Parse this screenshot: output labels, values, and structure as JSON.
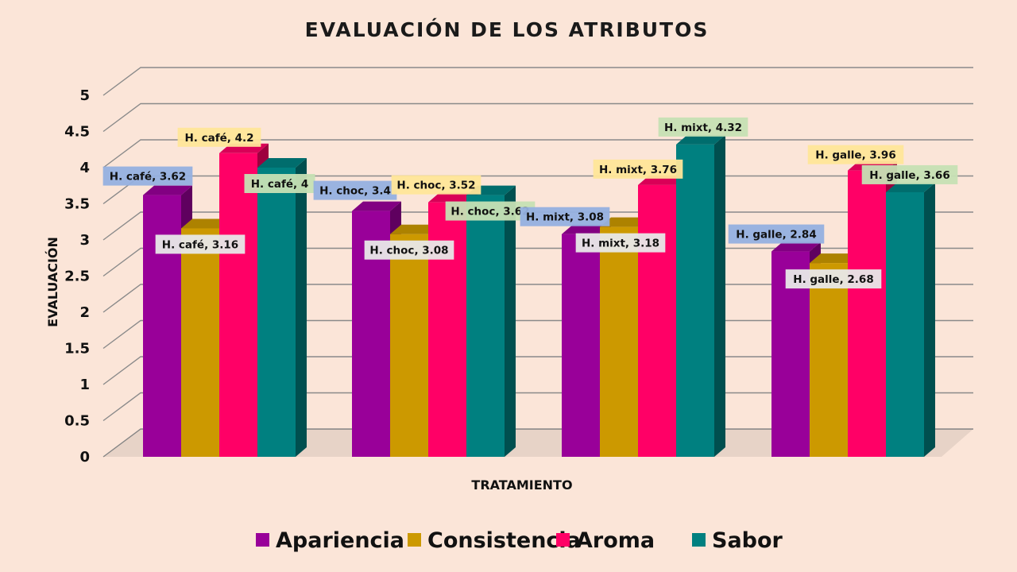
{
  "chart_data": {
    "type": "bar",
    "style": "3d-clustered-column",
    "title": "EVALUACIÓN DE LOS ATRIBUTOS",
    "xlabel": "TRATAMIENTO",
    "ylabel": "EVALUACIÓN",
    "ylim": [
      0,
      5
    ],
    "yticks": [
      "0",
      "0.5",
      "1",
      "1.5",
      "2",
      "2.5",
      "3",
      "3.5",
      "4",
      "4.5",
      "5"
    ],
    "grid": true,
    "legend_position": "bottom",
    "categories": [
      "H. café",
      "H. choc",
      "H. mixt",
      "H. galle"
    ],
    "series": [
      {
        "name": "Apariencia",
        "color": "#990099",
        "label_bg": "#95b0e0",
        "values": [
          3.62,
          3.4,
          3.08,
          2.84
        ]
      },
      {
        "name": "Consistencia",
        "color": "#cc9900",
        "label_bg": "#e8e8e8",
        "values": [
          3.16,
          3.08,
          3.18,
          2.68
        ]
      },
      {
        "name": "Aroma",
        "color": "#ff0066",
        "label_bg": "#ffe699",
        "values": [
          4.2,
          3.52,
          3.76,
          3.96
        ]
      },
      {
        "name": "Sabor",
        "color": "#008080",
        "label_bg": "#c6e0b4",
        "values": [
          4,
          3.62,
          4.32,
          3.66
        ]
      }
    ],
    "data_labels": [
      [
        "H. café, 3.62",
        "H. café, 3.16",
        "H. café, 4.2",
        "H. café, 4"
      ],
      [
        "H. choc, 3.4",
        "H. choc, 3.08",
        "H. choc, 3.52",
        "H. choc, 3.62"
      ],
      [
        "H. mixt, 3.08",
        "H. mixt, 3.18",
        "H. mixt, 3.76",
        "H. mixt, 4.32"
      ],
      [
        "H. galle, 2.84",
        "H. galle, 2.68",
        "H. galle, 3.96",
        "H. galle, 3.66"
      ]
    ]
  }
}
